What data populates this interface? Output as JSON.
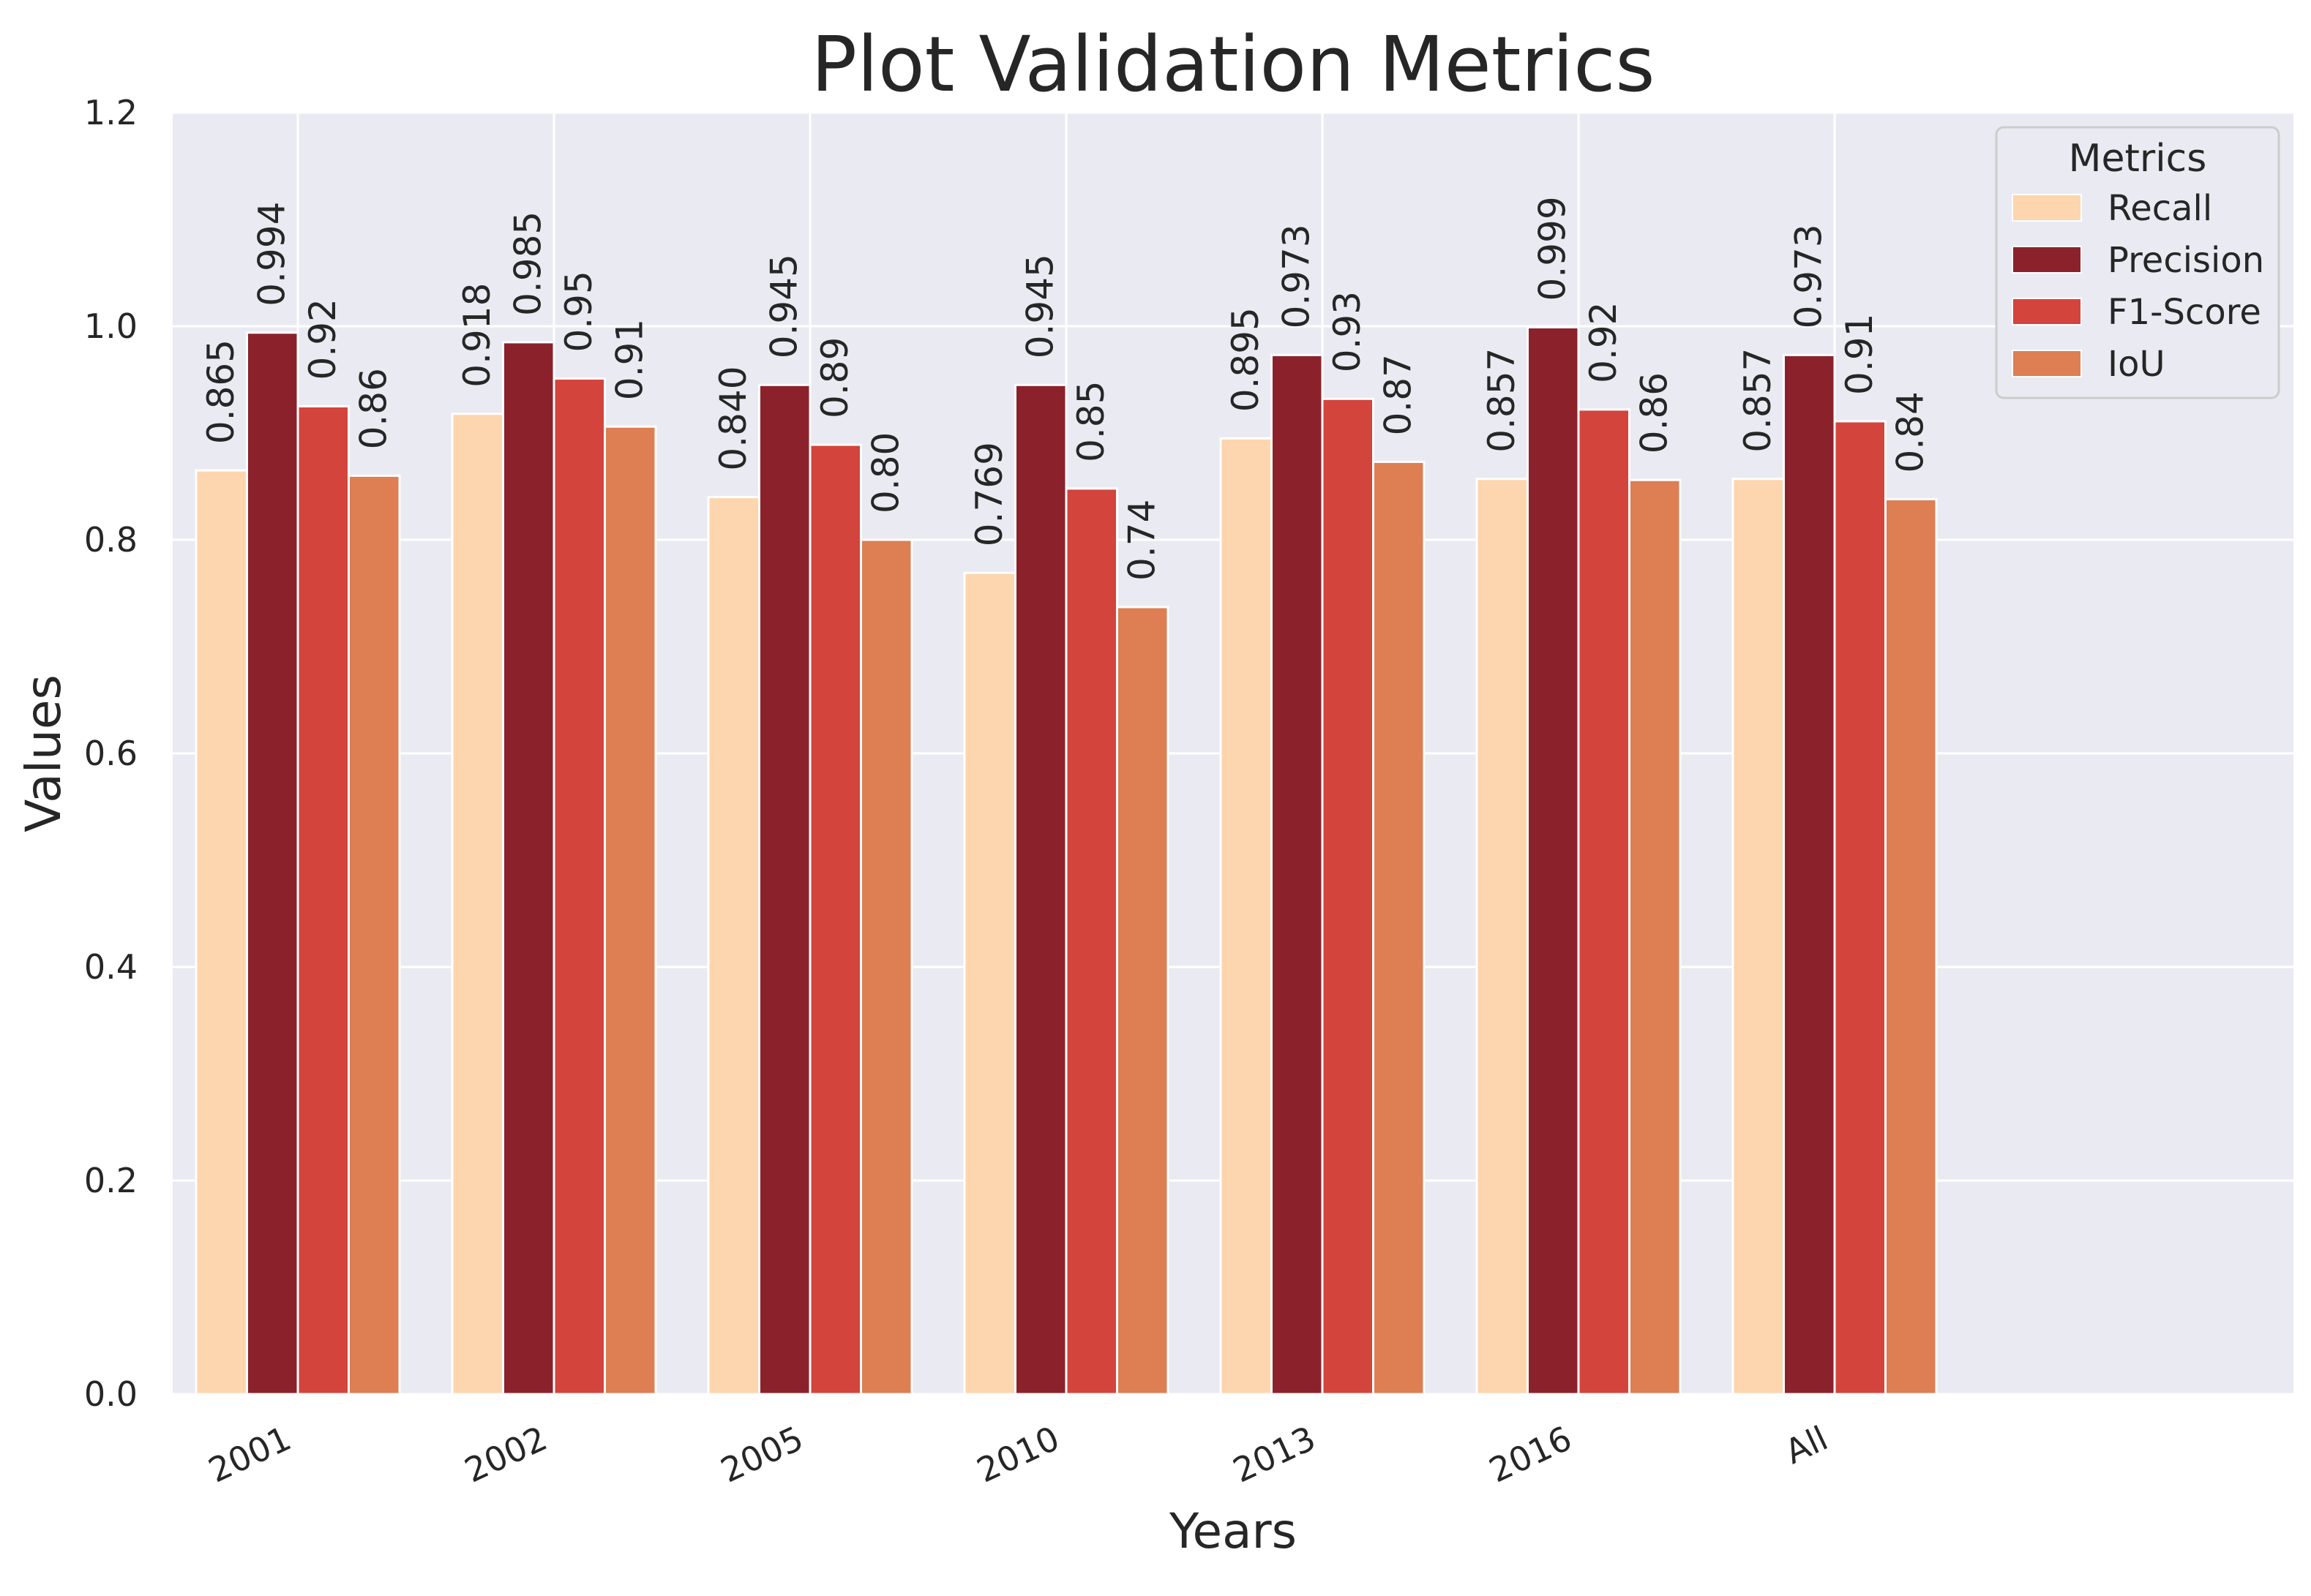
{
  "chart_data": {
    "type": "bar",
    "title": "Plot Validation Metrics",
    "xlabel": "Years",
    "ylabel": "Values",
    "ylim": [
      0,
      1.2
    ],
    "yticks": [
      "0.0",
      "0.2",
      "0.4",
      "0.6",
      "0.8",
      "1.0",
      "1.2"
    ],
    "categories": [
      "2001",
      "2002",
      "2005",
      "2010",
      "2013",
      "2016",
      "All"
    ],
    "legend": {
      "title": "Metrics",
      "position": "top-right"
    },
    "grid": true,
    "series": [
      {
        "name": "Recall",
        "color": "#fdd5ae",
        "values": [
          0.865,
          0.918,
          0.84,
          0.769,
          0.895,
          0.857,
          0.857
        ],
        "labels": [
          "0.865",
          "0.918",
          "0.840",
          "0.769",
          "0.895",
          "0.857",
          "0.857"
        ]
      },
      {
        "name": "Precision",
        "color": "#8b222b",
        "values": [
          0.994,
          0.985,
          0.945,
          0.945,
          0.973,
          0.999,
          0.973
        ],
        "labels": [
          "0.994",
          "0.985",
          "0.945",
          "0.945",
          "0.973",
          "0.999",
          "0.973"
        ]
      },
      {
        "name": "F1-Score",
        "color": "#d3443d",
        "values": [
          0.925,
          0.951,
          0.889,
          0.848,
          0.932,
          0.922,
          0.911
        ],
        "labels": [
          "0.92",
          "0.95",
          "0.89",
          "0.85",
          "0.93",
          "0.92",
          "0.91"
        ]
      },
      {
        "name": "IoU",
        "color": "#dd7e53",
        "values": [
          0.86,
          0.906,
          0.8,
          0.737,
          0.873,
          0.856,
          0.838
        ],
        "labels": [
          "0.86",
          "0.91",
          "0.80",
          "0.74",
          "0.87",
          "0.86",
          "0.84"
        ]
      }
    ]
  }
}
